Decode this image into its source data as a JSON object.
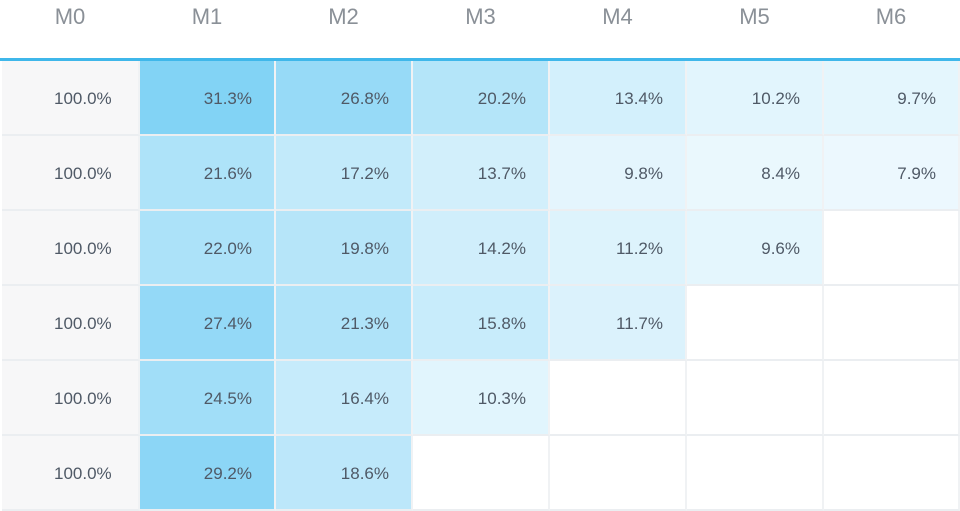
{
  "chart_data": {
    "type": "heatmap",
    "columns": [
      "M0",
      "M1",
      "M2",
      "M3",
      "M4",
      "M5",
      "M6"
    ],
    "rows": [
      {
        "values": [
          "100.0%",
          "31.3%",
          "26.8%",
          "20.2%",
          "13.4%",
          "10.2%",
          "9.7%"
        ]
      },
      {
        "values": [
          "100.0%",
          "21.6%",
          "17.2%",
          "13.7%",
          "9.8%",
          "8.4%",
          "7.9%"
        ]
      },
      {
        "values": [
          "100.0%",
          "22.0%",
          "19.8%",
          "14.2%",
          "11.2%",
          "9.6%",
          ""
        ]
      },
      {
        "values": [
          "100.0%",
          "27.4%",
          "21.3%",
          "15.8%",
          "11.7%",
          "",
          ""
        ]
      },
      {
        "values": [
          "100.0%",
          "24.5%",
          "16.4%",
          "10.3%",
          "",
          "",
          ""
        ]
      },
      {
        "values": [
          "100.0%",
          "29.2%",
          "18.6%",
          "",
          "",
          "",
          ""
        ]
      }
    ],
    "color_scale": {
      "low": "#ffffff",
      "high": "#7fd2f5",
      "first_column": "#f7f7f8"
    }
  },
  "colors": {
    "header_rule": "#3fb7ea",
    "text": "#4f5966",
    "header_text": "#8a9097"
  }
}
